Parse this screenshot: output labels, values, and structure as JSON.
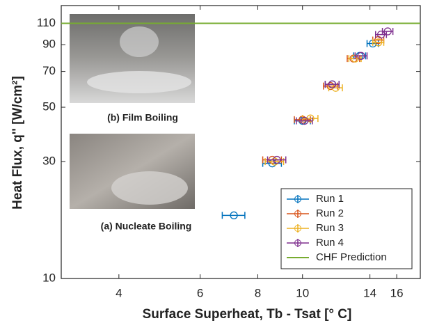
{
  "chart_data": {
    "type": "scatter",
    "x_label": "Surface Superheat,  Tb - Tsat [° C]",
    "y_label": "Heat Flux, q'' [W/cm²]",
    "xscale": "log",
    "yscale": "log",
    "xlim": [
      3,
      18
    ],
    "ylim": [
      10,
      130
    ],
    "xticks": [
      4,
      6,
      8,
      10,
      14,
      16
    ],
    "yticks": [
      10,
      30,
      50,
      70,
      90,
      110
    ],
    "legend": "lower right",
    "series": [
      {
        "name": "Run 1",
        "color": "#0072bd",
        "x": [
          7.1,
          8.6,
          10.0,
          11.6,
          13.3,
          14.2
        ],
        "xerr": [
          0.4,
          0.4,
          0.4,
          0.4,
          0.4,
          0.4
        ],
        "values": [
          18.1,
          29.5,
          44,
          62,
          81,
          91
        ]
      },
      {
        "name": "Run 2",
        "color": "#d95319",
        "x": [
          8.6,
          10.0,
          11.5,
          12.9,
          14.6
        ],
        "xerr": [
          0.4,
          0.4,
          0.4,
          0.4,
          0.4
        ],
        "values": [
          30.5,
          44.5,
          61,
          79,
          94
        ]
      },
      {
        "name": "Run 3",
        "color": "#edb120",
        "x": [
          8.7,
          10.4,
          11.8,
          13.0,
          14.6
        ],
        "xerr": [
          0.4,
          0.4,
          0.4,
          0.4,
          0.4
        ],
        "values": [
          30,
          45,
          60,
          79,
          92
        ]
      },
      {
        "name": "Run 4",
        "color": "#7e2f8e",
        "x": [
          8.8,
          10.1,
          11.6,
          13.4,
          14.8,
          15.3
        ],
        "xerr": [
          0.4,
          0.4,
          0.4,
          0.4,
          0.4,
          0.4
        ],
        "values": [
          30.5,
          44,
          62,
          81,
          99,
          102
        ]
      }
    ],
    "reference_line": {
      "name": "CHF Prediction",
      "color": "#77ac30",
      "value": 110
    },
    "insets": [
      "(b) Film Boiling",
      "(a) Nucleate Boiling"
    ]
  }
}
